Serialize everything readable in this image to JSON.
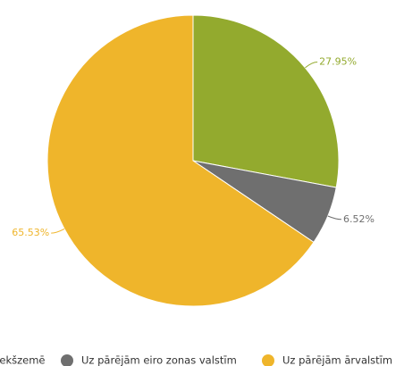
{
  "chart_data": {
    "type": "pie",
    "categories": [
      "Iekšzemē",
      "Uz pārējām eiro zonas valstīm",
      "Uz pārējām ārvalstīm"
    ],
    "values": [
      27.95,
      6.52,
      65.53
    ],
    "value_labels": [
      "27.95%",
      "6.52%",
      "65.53%"
    ],
    "colors": [
      "#93aa2e",
      "#6f6f6f",
      "#efb52b"
    ],
    "legend": "bottom"
  }
}
